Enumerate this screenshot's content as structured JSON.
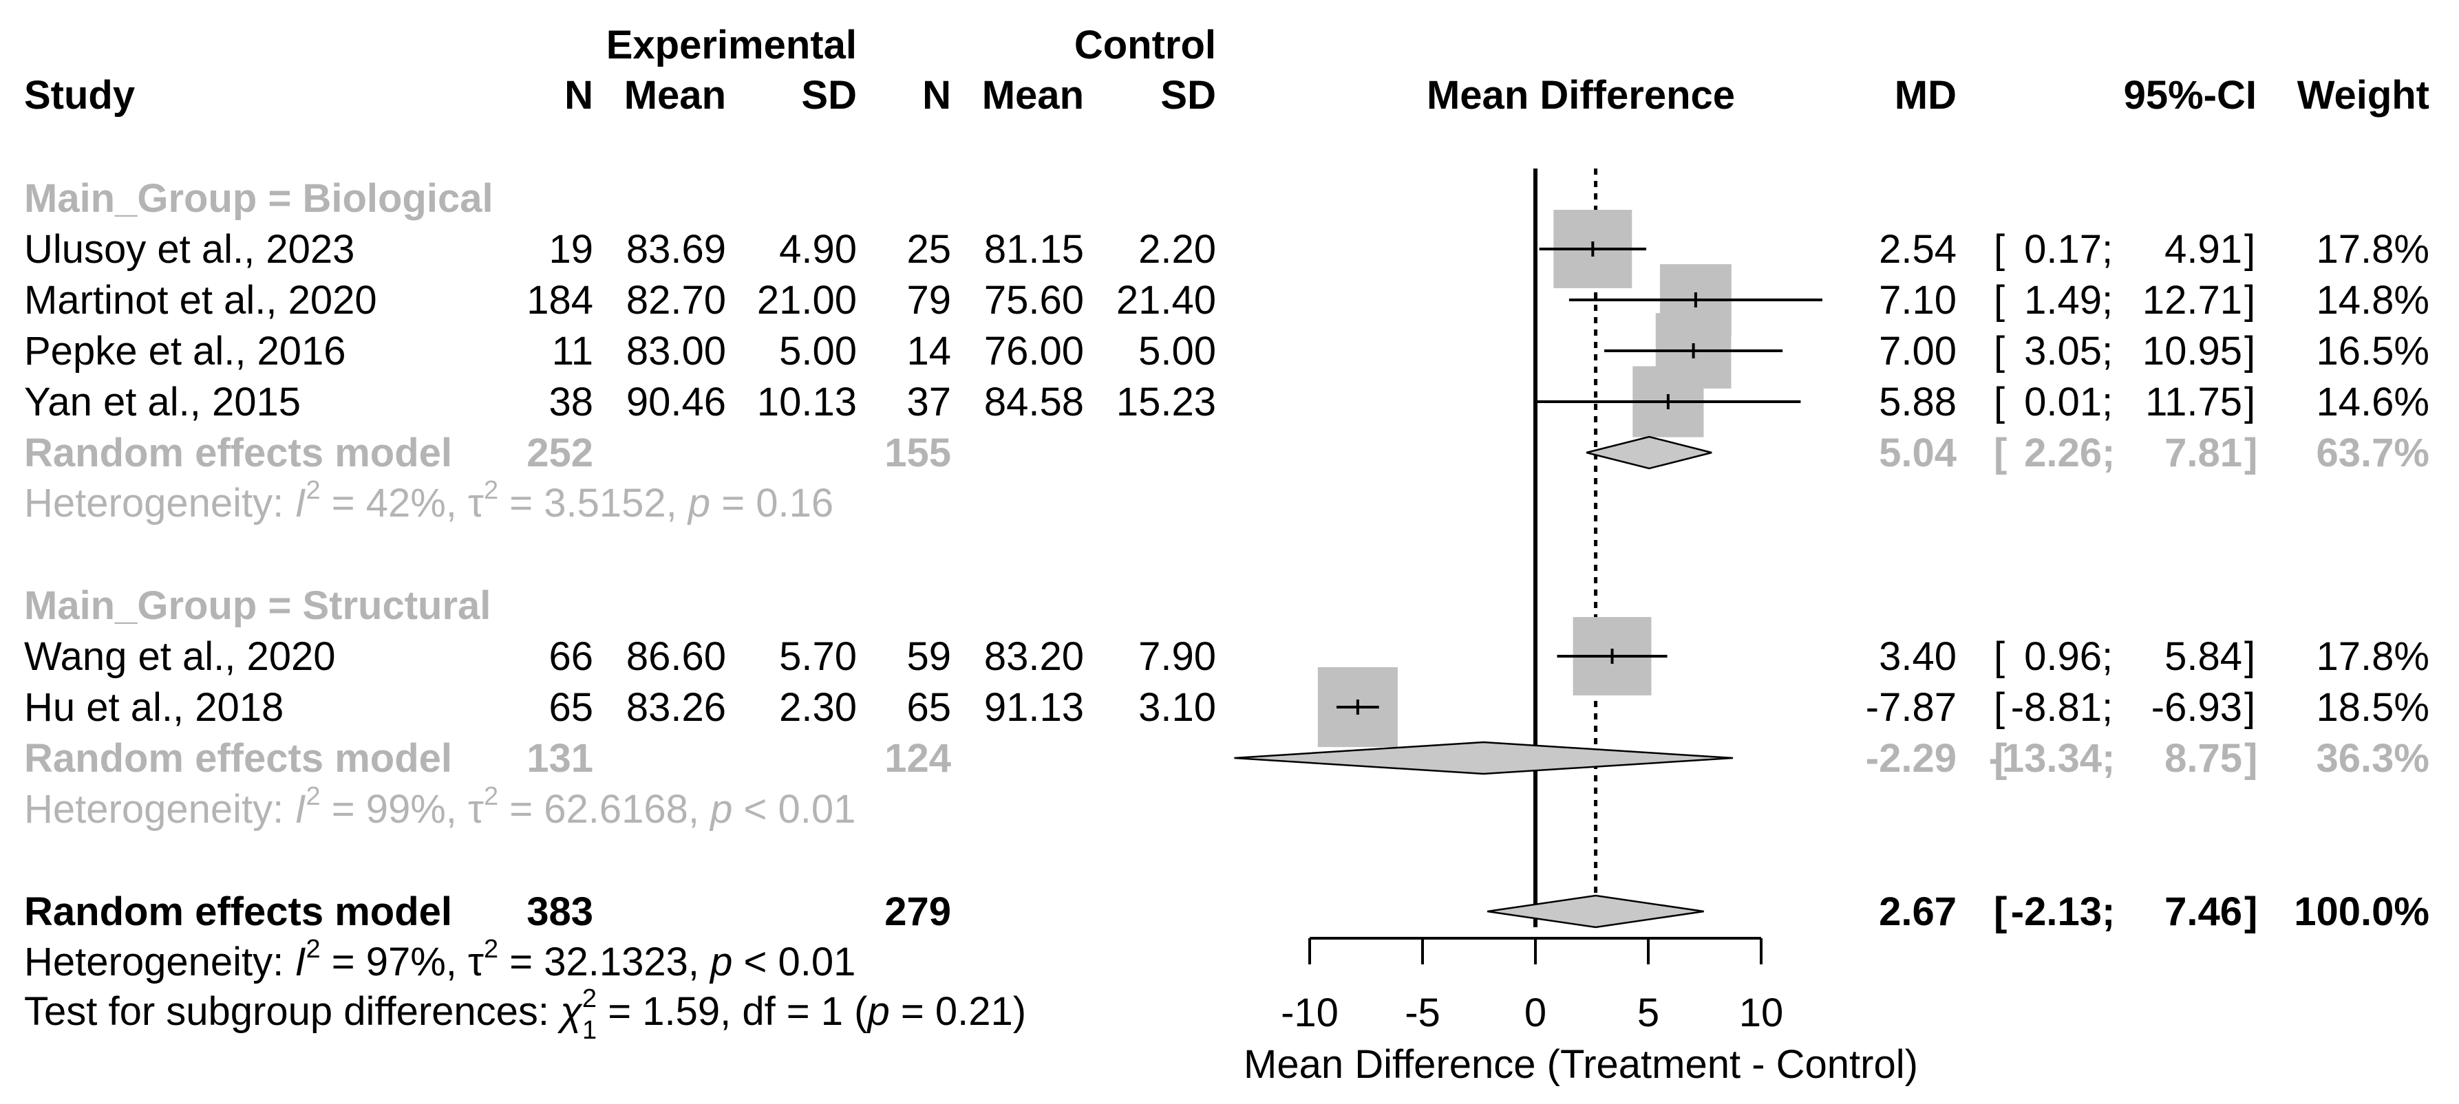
{
  "colors": {
    "text": "#000000",
    "subgroup": "#b4b4b4",
    "box": "#c0c0c0",
    "diamond": "#c8c8c8"
  },
  "header": {
    "study": "Study",
    "experimental": "Experimental",
    "control": "Control",
    "n": "N",
    "mean": "Mean",
    "sd": "SD",
    "plot_title": "Mean Difference",
    "md": "MD",
    "ci": "95%-CI",
    "weight": "Weight"
  },
  "groups": [
    {
      "label": "Main_Group = Biological",
      "studies": [
        {
          "study": "Ulusoy et al., 2023",
          "e_n": "19",
          "e_mean": "83.69",
          "e_sd": "4.90",
          "c_n": "25",
          "c_mean": "81.15",
          "c_sd": "2.20",
          "md": "2.54",
          "ci_lo": " 0.17",
          "ci_hi": "4.91",
          "weight": "17.8%"
        },
        {
          "study": "Martinot et al., 2020",
          "e_n": "184",
          "e_mean": "82.70",
          "e_sd": "21.00",
          "c_n": "79",
          "c_mean": "75.60",
          "c_sd": "21.40",
          "md": "7.10",
          "ci_lo": " 1.49",
          "ci_hi": "12.71",
          "weight": "14.8%"
        },
        {
          "study": "Pepke et al., 2016",
          "e_n": "11",
          "e_mean": "83.00",
          "e_sd": "5.00",
          "c_n": "14",
          "c_mean": "76.00",
          "c_sd": "5.00",
          "md": "7.00",
          "ci_lo": " 3.05",
          "ci_hi": "10.95",
          "weight": "16.5%"
        },
        {
          "study": "Yan et al., 2015",
          "e_n": "38",
          "e_mean": "90.46",
          "e_sd": "10.13",
          "c_n": "37",
          "c_mean": "84.58",
          "c_sd": "15.23",
          "md": "5.88",
          "ci_lo": " 0.01",
          "ci_hi": "11.75",
          "weight": "14.6%"
        }
      ],
      "model": {
        "label": "Random effects model",
        "e_n": "252",
        "c_n": "155",
        "md": "5.04",
        "ci_lo": " 2.26",
        "ci_hi": "7.81",
        "weight": "63.7%"
      },
      "heterogeneity": {
        "prefix": "Heterogeneity: ",
        "i2_value": " = 42%, ",
        "tau2_value": " = 3.5152, ",
        "p_value": " = 0.16"
      }
    },
    {
      "label": "Main_Group = Structural",
      "studies": [
        {
          "study": "Wang et al., 2020",
          "e_n": "66",
          "e_mean": "86.60",
          "e_sd": "5.70",
          "c_n": "59",
          "c_mean": "83.20",
          "c_sd": "7.90",
          "md": "3.40",
          "ci_lo": " 0.96",
          "ci_hi": "5.84",
          "weight": "17.8%"
        },
        {
          "study": "Hu  et al., 2018",
          "e_n": "65",
          "e_mean": "83.26",
          "e_sd": "2.30",
          "c_n": "65",
          "c_mean": "91.13",
          "c_sd": "3.10",
          "md": "-7.87",
          "ci_lo": "-8.81",
          "ci_hi": "-6.93",
          "weight": "18.5%"
        }
      ],
      "model": {
        "label": "Random effects model",
        "e_n": "131",
        "c_n": "124",
        "md": "-2.29",
        "ci_lo": "-13.34",
        "ci_hi": "8.75",
        "weight": "36.3%"
      },
      "heterogeneity": {
        "prefix": "Heterogeneity: ",
        "i2_value": " = 99%, ",
        "tau2_value": " = 62.6168, ",
        "p_value": " < 0.01"
      }
    }
  ],
  "overall": {
    "model": {
      "label": "Random effects model",
      "e_n": "383",
      "c_n": "279",
      "md": "2.67",
      "ci_lo": "-2.13",
      "ci_hi": "7.46",
      "weight": "100.0%"
    },
    "heterogeneity": {
      "prefix": "Heterogeneity: ",
      "i2_value": " = 97%, ",
      "tau2_value": " = 32.1323, ",
      "p_value": " < 0.01"
    },
    "subgroup_test": {
      "prefix": "Test for subgroup differences: ",
      "chi_value": " = 1.59, df = 1 (",
      "p_value": " = 0.21)"
    }
  },
  "chart_data": {
    "type": "forest",
    "xlabel": "Mean Difference (Treatment - Control)",
    "xlim": [
      -10,
      10
    ],
    "ticks": [
      -10,
      -5,
      0,
      5,
      10
    ],
    "tick_labels": [
      "-10",
      "-5",
      "0",
      "5",
      "10"
    ],
    "null_value": 0,
    "overall_effect_line": 2.67,
    "rows": [
      {
        "study": "Ulusoy et al., 2023",
        "md": 2.54,
        "lo": 0.17,
        "hi": 4.91,
        "weight": 17.8
      },
      {
        "study": "Martinot et al., 2020",
        "md": 7.1,
        "lo": 1.49,
        "hi": 12.71,
        "weight": 14.8
      },
      {
        "study": "Pepke et al., 2016",
        "md": 7.0,
        "lo": 3.05,
        "hi": 10.95,
        "weight": 16.5
      },
      {
        "study": "Yan et al., 2015",
        "md": 5.88,
        "lo": 0.01,
        "hi": 11.75,
        "weight": 14.6
      },
      {
        "study": "Wang et al., 2020",
        "md": 3.4,
        "lo": 0.96,
        "hi": 5.84,
        "weight": 17.8
      },
      {
        "study": "Hu  et al., 2018",
        "md": -7.87,
        "lo": -8.81,
        "hi": -6.93,
        "weight": 18.5
      }
    ],
    "diamonds": [
      {
        "label": "Biological",
        "md": 5.04,
        "lo": 2.26,
        "hi": 7.81
      },
      {
        "label": "Structural",
        "md": -2.29,
        "lo": -13.34,
        "hi": 8.75
      },
      {
        "label": "Overall",
        "md": 2.67,
        "lo": -2.13,
        "hi": 7.46
      }
    ]
  }
}
